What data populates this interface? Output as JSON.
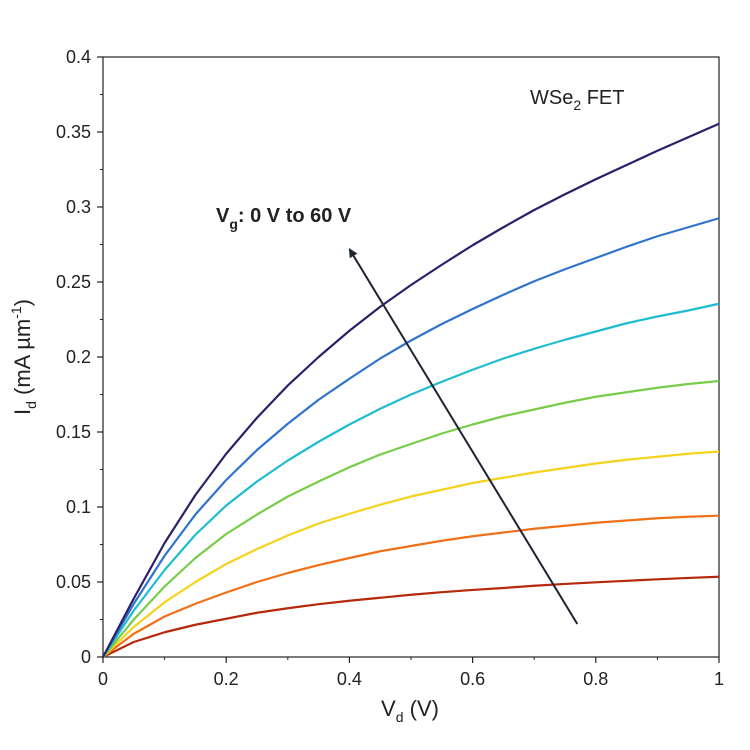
{
  "chart_data": {
    "type": "line",
    "x_axis": {
      "label": "V",
      "label_subscript": "d",
      "label_suffix": " (V)",
      "range": [
        0,
        1
      ],
      "ticks": [
        "0",
        "0.2",
        "0.4",
        "0.6",
        "0.8",
        "1"
      ]
    },
    "y_axis": {
      "label": "I",
      "label_subscript": "d",
      "label_middle": " (mA µm",
      "label_superscript": "-1",
      "label_suffix": ")",
      "range": [
        0,
        0.4
      ],
      "ticks": [
        "0",
        "0.05",
        "0.1",
        "0.15",
        "0.2",
        "0.25",
        "0.3",
        "0.35",
        "0.4"
      ]
    },
    "annotations": {
      "device": {
        "text": "WSe",
        "subscript": "2",
        "suffix": " FET"
      },
      "gate_sweep": {
        "prefix": "V",
        "subscript": "g",
        "suffix": ": 0 V to 60 V"
      }
    },
    "arrow": {
      "from": [
        0.77,
        0.022
      ],
      "to": [
        0.4,
        0.272
      ]
    },
    "x": [
      0,
      0.05,
      0.1,
      0.15,
      0.2,
      0.25,
      0.3,
      0.35,
      0.4,
      0.45,
      0.5,
      0.55,
      0.6,
      0.65,
      0.7,
      0.75,
      0.8,
      0.85,
      0.9,
      0.95,
      1
    ],
    "series": [
      {
        "color": "#b5280a",
        "values": [
          0,
          0.01,
          0.0165,
          0.0215,
          0.0255,
          0.0295,
          0.0325,
          0.0352,
          0.0375,
          0.0395,
          0.0415,
          0.0432,
          0.0447,
          0.046,
          0.0475,
          0.0487,
          0.0498,
          0.0508,
          0.0518,
          0.0527,
          0.0535
        ]
      },
      {
        "color": "#f07018",
        "values": [
          0,
          0.0155,
          0.027,
          0.0355,
          0.043,
          0.05,
          0.056,
          0.0613,
          0.066,
          0.0705,
          0.074,
          0.0775,
          0.0805,
          0.083,
          0.0855,
          0.0875,
          0.0895,
          0.091,
          0.0925,
          0.0935,
          0.0942
        ]
      },
      {
        "color": "#f5d21c",
        "values": [
          0,
          0.02,
          0.0365,
          0.05,
          0.062,
          0.072,
          0.081,
          0.089,
          0.0955,
          0.1015,
          0.107,
          0.1115,
          0.116,
          0.1195,
          0.123,
          0.126,
          0.129,
          0.1315,
          0.1335,
          0.1355,
          0.137
        ]
      },
      {
        "color": "#77cc48",
        "values": [
          0,
          0.025,
          0.047,
          0.066,
          0.082,
          0.095,
          0.107,
          0.117,
          0.1265,
          0.135,
          0.142,
          0.149,
          0.155,
          0.1605,
          0.165,
          0.1695,
          0.1735,
          0.1765,
          0.1795,
          0.182,
          0.184
        ]
      },
      {
        "color": "#1fbcd0",
        "values": [
          0,
          0.031,
          0.058,
          0.0815,
          0.101,
          0.117,
          0.131,
          0.1435,
          0.155,
          0.1655,
          0.175,
          0.1835,
          0.1915,
          0.199,
          0.2055,
          0.2115,
          0.217,
          0.2225,
          0.227,
          0.231,
          0.2355
        ]
      },
      {
        "color": "#2f74cc",
        "values": [
          0,
          0.0355,
          0.0675,
          0.095,
          0.118,
          0.138,
          0.1555,
          0.1715,
          0.1855,
          0.199,
          0.211,
          0.222,
          0.232,
          0.2415,
          0.2505,
          0.2585,
          0.266,
          0.2735,
          0.2805,
          0.2865,
          0.2925
        ]
      },
      {
        "color": "#2e1f6a",
        "values": [
          0,
          0.039,
          0.076,
          0.108,
          0.1355,
          0.1595,
          0.181,
          0.2,
          0.2175,
          0.2335,
          0.248,
          0.2615,
          0.2745,
          0.2865,
          0.298,
          0.3085,
          0.3185,
          0.328,
          0.3375,
          0.3465,
          0.3555
        ]
      }
    ]
  }
}
